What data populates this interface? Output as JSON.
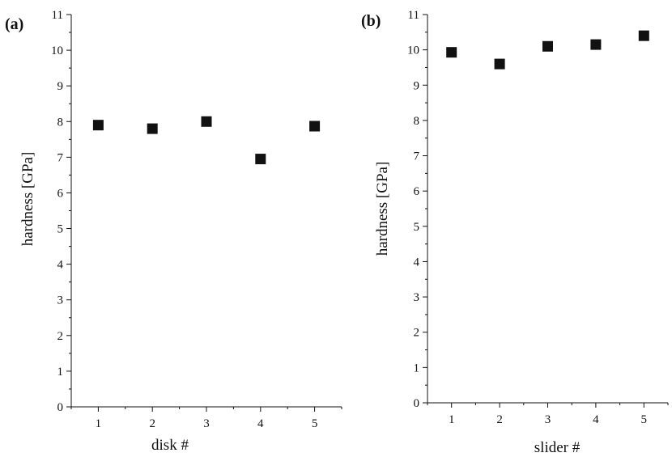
{
  "chart_data": [
    {
      "type": "scatter",
      "panel_label": "(a)",
      "xlabel": "disk #",
      "ylabel": "hardness [GPa]",
      "x": [
        1,
        2,
        3,
        4,
        5
      ],
      "xticks": [
        "1",
        "2",
        "3",
        "4",
        "5"
      ],
      "xlim": [
        0.5,
        5.5
      ],
      "values": [
        7.9,
        7.8,
        8.0,
        6.95,
        7.87
      ],
      "ylim": [
        0,
        11
      ],
      "yticks": [
        "0",
        "1",
        "2",
        "3",
        "4",
        "5",
        "6",
        "7",
        "8",
        "9",
        "10",
        "11"
      ],
      "marker": "square",
      "color": "#111111",
      "grid": false
    },
    {
      "type": "scatter",
      "panel_label": "(b)",
      "xlabel": "slider #",
      "ylabel": "hardness [GPa]",
      "x": [
        1,
        2,
        3,
        4,
        5
      ],
      "xticks": [
        "1",
        "2",
        "3",
        "4",
        "5"
      ],
      "xlim": [
        0.5,
        5.5
      ],
      "values": [
        9.93,
        9.6,
        10.1,
        10.15,
        10.4
      ],
      "ylim": [
        0,
        11
      ],
      "yticks": [
        "0",
        "1",
        "2",
        "3",
        "4",
        "5",
        "6",
        "7",
        "8",
        "9",
        "10",
        "11"
      ],
      "marker": "square",
      "color": "#111111",
      "grid": false
    }
  ]
}
